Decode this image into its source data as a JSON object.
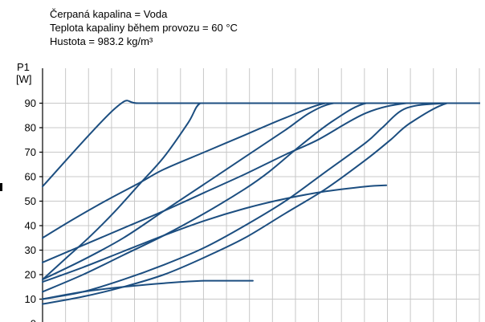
{
  "info": {
    "line1": "Čerpaná kapalina = Voda",
    "line2": "Teplota kapaliny během provozu = 60 °C",
    "line3": "Hustota = 983.2 kg/m³"
  },
  "chart_data": {
    "type": "line",
    "title": "",
    "xlabel": "",
    "ylabel_line1": "P1",
    "ylabel_line2": "[W]",
    "ylim": [
      0,
      100
    ],
    "yticks": [
      0,
      10,
      20,
      30,
      40,
      50,
      60,
      70,
      80,
      90
    ],
    "x_grid_lines": 19,
    "x_unit": "relative flow (axis labels cut off)",
    "xlim": [
      0,
      54
    ],
    "grid": true,
    "line_color": "#1c4e80",
    "series": [
      {
        "x": [
          0,
          9,
          12,
          20,
          40,
          54
        ],
        "y": [
          56,
          88,
          90,
          90,
          90,
          90
        ]
      },
      {
        "x": [
          0,
          4,
          8,
          12,
          15,
          20,
          25,
          30,
          35,
          40,
          45,
          50,
          54
        ],
        "y": [
          35,
          43,
          50.5,
          57.5,
          63,
          70,
          77,
          84,
          90,
          90,
          90,
          90,
          90
        ]
      },
      {
        "x": [
          0,
          5,
          10,
          15,
          20,
          25,
          30,
          34,
          40,
          45,
          50,
          54
        ],
        "y": [
          25,
          32,
          39,
          46,
          53.5,
          61,
          69,
          75,
          86,
          90,
          90,
          90
        ]
      },
      {
        "x": [
          0,
          3,
          6,
          9,
          12,
          15,
          18,
          19.5,
          22,
          30,
          40,
          54
        ],
        "y": [
          18,
          27,
          36,
          46,
          57,
          68,
          82,
          90,
          90,
          90,
          90,
          90
        ]
      },
      {
        "x": [
          0,
          5,
          10,
          15,
          20,
          25,
          30,
          33,
          36,
          40,
          45,
          50,
          54
        ],
        "y": [
          18,
          26,
          35,
          46,
          57,
          68,
          79,
          86,
          90,
          90,
          90,
          90,
          90
        ]
      },
      {
        "x": [
          0,
          5,
          10,
          15,
          20,
          25,
          28,
          32,
          36,
          40,
          45,
          50,
          54
        ],
        "y": [
          13,
          20,
          28,
          36,
          45,
          55,
          62,
          73,
          83,
          90,
          90,
          90,
          90
        ]
      },
      {
        "x": [
          0,
          5,
          10,
          15,
          20,
          25,
          30,
          35,
          40,
          42,
          45,
          50,
          54
        ],
        "y": [
          10,
          13,
          18,
          24,
          31,
          40,
          50,
          62,
          74,
          80,
          88,
          90,
          90
        ]
      },
      {
        "x": [
          0,
          5,
          10,
          15,
          20,
          25,
          30,
          35,
          40,
          43,
          45.5,
          50,
          54
        ],
        "y": [
          8,
          11,
          15,
          20,
          27,
          35,
          45,
          55,
          67,
          75,
          82,
          90,
          90
        ]
      },
      {
        "x": [
          0,
          5,
          10,
          15,
          20,
          25,
          30,
          35,
          40,
          42.5
        ],
        "y": [
          17,
          23,
          29.5,
          36,
          42,
          47,
          51,
          54,
          56,
          56.5
        ]
      },
      {
        "x": [
          0,
          5,
          10,
          15,
          20,
          26
        ],
        "y": [
          10,
          13,
          15,
          16.5,
          17.5,
          17.5
        ]
      }
    ]
  }
}
